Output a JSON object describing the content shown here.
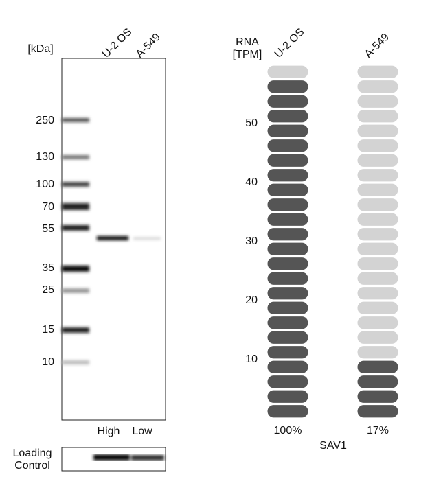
{
  "blot": {
    "unit_label": "[kDa]",
    "lanes": [
      "U-2 OS",
      "A-549"
    ],
    "markers": [
      "250",
      "130",
      "100",
      "70",
      "55",
      "35",
      "25",
      "15",
      "10"
    ],
    "levels": [
      "High",
      "Low"
    ],
    "loading_label": [
      "Loading",
      "Control"
    ]
  },
  "chart_data": {
    "type": "bar",
    "ylabel": [
      "RNA",
      "[TPM]"
    ],
    "categories": [
      "U-2 OS",
      "A-549"
    ],
    "values": [
      57.5,
      10
    ],
    "annotations": [
      "100%",
      "17%"
    ],
    "xlabel": "SAV1",
    "ylim": [
      0,
      60
    ],
    "yticks": [
      10,
      20,
      30,
      40,
      50
    ],
    "color": "#555555",
    "empty_color": "#d3d3d3"
  }
}
